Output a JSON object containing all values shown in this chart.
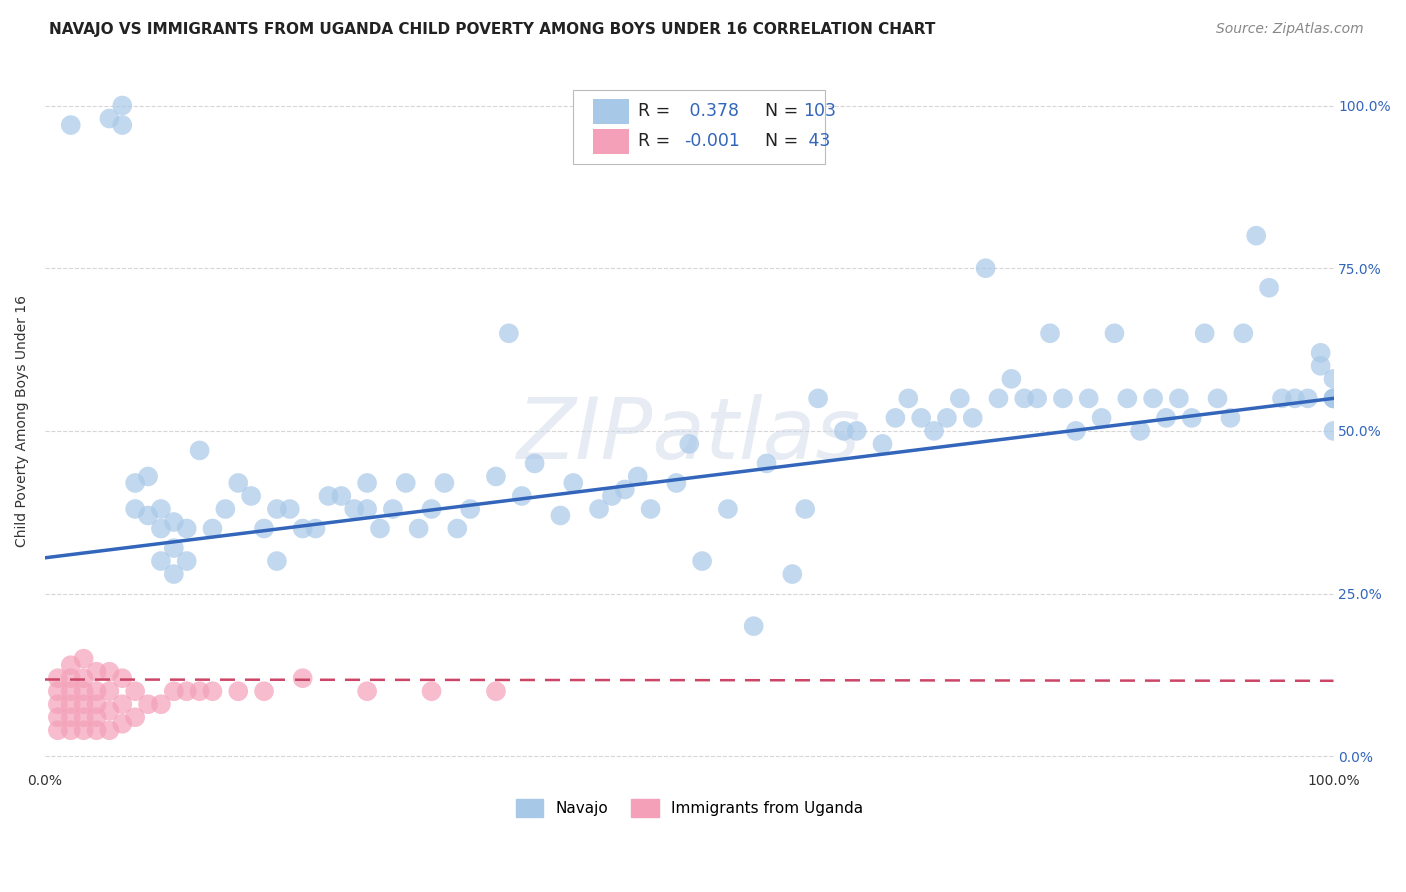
{
  "title": "NAVAJO VS IMMIGRANTS FROM UGANDA CHILD POVERTY AMONG BOYS UNDER 16 CORRELATION CHART",
  "source": "Source: ZipAtlas.com",
  "ylabel": "Child Poverty Among Boys Under 16",
  "navajo_R": 0.378,
  "navajo_N": 103,
  "uganda_R": -0.001,
  "uganda_N": 43,
  "navajo_color": "#a8c8e8",
  "uganda_color": "#f4a0b8",
  "navajo_line_color": "#3366bb",
  "uganda_line_color": "#cc4466",
  "background_color": "#ffffff",
  "grid_color": "#cccccc",
  "xlim": [
    0.0,
    1.0
  ],
  "ylim": [
    -0.02,
    1.05
  ],
  "yticks": [
    0.0,
    0.25,
    0.5,
    0.75,
    1.0
  ],
  "ytick_labels": [
    "0.0%",
    "25.0%",
    "50.0%",
    "75.0%",
    "100.0%"
  ],
  "xticks": [
    0.0,
    1.0
  ],
  "xtick_labels": [
    "0.0%",
    "100.0%"
  ],
  "navajo_x": [
    0.02,
    0.05,
    0.06,
    0.06,
    0.07,
    0.07,
    0.08,
    0.08,
    0.09,
    0.09,
    0.09,
    0.1,
    0.1,
    0.1,
    0.11,
    0.11,
    0.12,
    0.13,
    0.14,
    0.15,
    0.16,
    0.17,
    0.18,
    0.18,
    0.19,
    0.2,
    0.21,
    0.22,
    0.23,
    0.24,
    0.25,
    0.25,
    0.26,
    0.27,
    0.28,
    0.29,
    0.3,
    0.31,
    0.32,
    0.33,
    0.35,
    0.36,
    0.37,
    0.38,
    0.4,
    0.41,
    0.43,
    0.44,
    0.45,
    0.46,
    0.47,
    0.49,
    0.5,
    0.51,
    0.53,
    0.55,
    0.56,
    0.58,
    0.59,
    0.6,
    0.62,
    0.63,
    0.65,
    0.66,
    0.67,
    0.68,
    0.69,
    0.7,
    0.71,
    0.72,
    0.73,
    0.74,
    0.75,
    0.76,
    0.77,
    0.78,
    0.79,
    0.8,
    0.81,
    0.82,
    0.83,
    0.84,
    0.85,
    0.86,
    0.87,
    0.88,
    0.89,
    0.9,
    0.91,
    0.92,
    0.93,
    0.94,
    0.95,
    0.96,
    0.97,
    0.98,
    0.99,
    0.99,
    1.0,
    1.0,
    1.0,
    1.0,
    1.0
  ],
  "navajo_y": [
    0.97,
    0.98,
    0.97,
    1.0,
    0.42,
    0.38,
    0.37,
    0.43,
    0.3,
    0.35,
    0.38,
    0.28,
    0.32,
    0.36,
    0.3,
    0.35,
    0.47,
    0.35,
    0.38,
    0.42,
    0.4,
    0.35,
    0.38,
    0.3,
    0.38,
    0.35,
    0.35,
    0.4,
    0.4,
    0.38,
    0.42,
    0.38,
    0.35,
    0.38,
    0.42,
    0.35,
    0.38,
    0.42,
    0.35,
    0.38,
    0.43,
    0.65,
    0.4,
    0.45,
    0.37,
    0.42,
    0.38,
    0.4,
    0.41,
    0.43,
    0.38,
    0.42,
    0.48,
    0.3,
    0.38,
    0.2,
    0.45,
    0.28,
    0.38,
    0.55,
    0.5,
    0.5,
    0.48,
    0.52,
    0.55,
    0.52,
    0.5,
    0.52,
    0.55,
    0.52,
    0.75,
    0.55,
    0.58,
    0.55,
    0.55,
    0.65,
    0.55,
    0.5,
    0.55,
    0.52,
    0.65,
    0.55,
    0.5,
    0.55,
    0.52,
    0.55,
    0.52,
    0.65,
    0.55,
    0.52,
    0.65,
    0.8,
    0.72,
    0.55,
    0.55,
    0.55,
    0.6,
    0.62,
    0.58,
    0.5,
    0.55,
    0.55,
    0.55
  ],
  "uganda_x": [
    0.01,
    0.01,
    0.01,
    0.01,
    0.01,
    0.02,
    0.02,
    0.02,
    0.02,
    0.02,
    0.02,
    0.03,
    0.03,
    0.03,
    0.03,
    0.03,
    0.03,
    0.04,
    0.04,
    0.04,
    0.04,
    0.04,
    0.05,
    0.05,
    0.05,
    0.05,
    0.06,
    0.06,
    0.06,
    0.07,
    0.07,
    0.08,
    0.09,
    0.1,
    0.11,
    0.12,
    0.13,
    0.15,
    0.17,
    0.2,
    0.25,
    0.3,
    0.35
  ],
  "uganda_y": [
    0.04,
    0.06,
    0.08,
    0.1,
    0.12,
    0.04,
    0.06,
    0.08,
    0.1,
    0.12,
    0.14,
    0.04,
    0.06,
    0.08,
    0.1,
    0.12,
    0.15,
    0.04,
    0.06,
    0.08,
    0.1,
    0.13,
    0.04,
    0.07,
    0.1,
    0.13,
    0.05,
    0.08,
    0.12,
    0.06,
    0.1,
    0.08,
    0.08,
    0.1,
    0.1,
    0.1,
    0.1,
    0.1,
    0.1,
    0.12,
    0.1,
    0.1,
    0.1
  ],
  "watermark_text": "ZIPatlas",
  "title_fontsize": 11,
  "label_fontsize": 10,
  "tick_fontsize": 10,
  "legend_fontsize": 11,
  "source_fontsize": 10,
  "navajo_line_intercept": 0.305,
  "navajo_line_slope": 0.245,
  "uganda_line_intercept": 0.118,
  "uganda_line_slope": -0.002
}
